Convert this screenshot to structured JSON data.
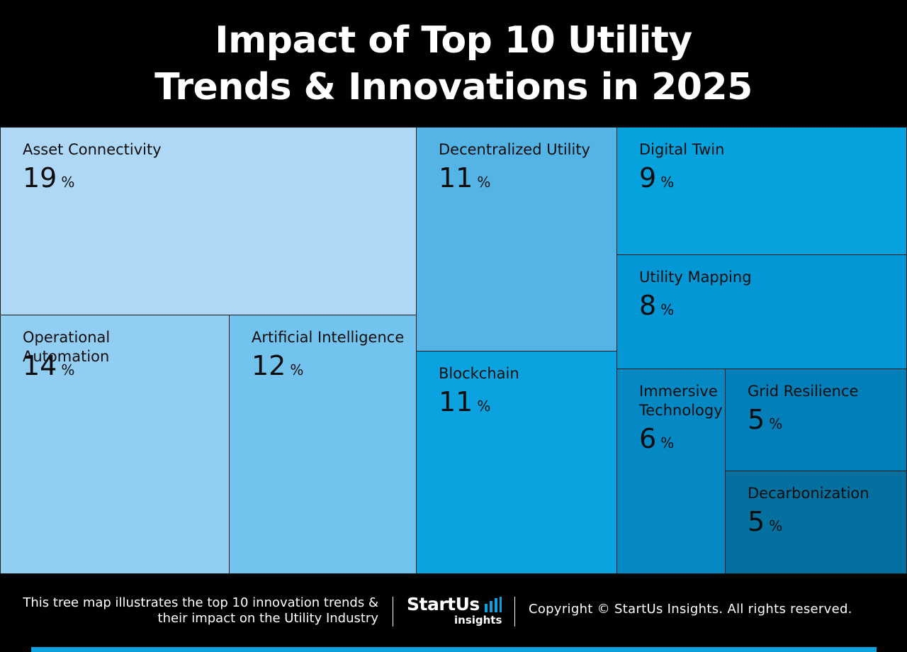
{
  "title_lines": [
    "Impact of Top 10 Utility",
    "Trends & Innovations in 2025"
  ],
  "chart_data": {
    "type": "treemap",
    "unit": "%",
    "items": [
      {
        "label": "Asset Connectivity",
        "value": 19,
        "color": "#aed8f5"
      },
      {
        "label": "Operational Automation",
        "value": 14,
        "color": "#91cef2"
      },
      {
        "label": "Artificial Intelligence",
        "value": 12,
        "color": "#72c3ee"
      },
      {
        "label": "Decentralized Utility",
        "value": 11,
        "color": "#54b4e6"
      },
      {
        "label": "Blockchain",
        "value": 11,
        "color": "#0aa3e0"
      },
      {
        "label": "Digital Twin",
        "value": 9,
        "color": "#05a2de"
      },
      {
        "label": "Utility Mapping",
        "value": 8,
        "color": "#0497d6"
      },
      {
        "label": "Immersive\nTechnology",
        "value": 6,
        "color": "#0589c4"
      },
      {
        "label": "Grid Resilience",
        "value": 5,
        "color": "#027fb8"
      },
      {
        "label": "Decarbonization",
        "value": 5,
        "color": "#03709f"
      }
    ]
  },
  "footer": {
    "description": "This tree map illustrates the top 10 innovation trends & their impact on the Utility Industry",
    "logo_main": "StartUs",
    "logo_sub": "insights",
    "copyright": "Copyright © StartUs Insights. All rights reserved."
  },
  "colors": {
    "background": "#000000",
    "accent_bar": "#0aa3e0",
    "logo_bars": "#0aa3e0"
  }
}
